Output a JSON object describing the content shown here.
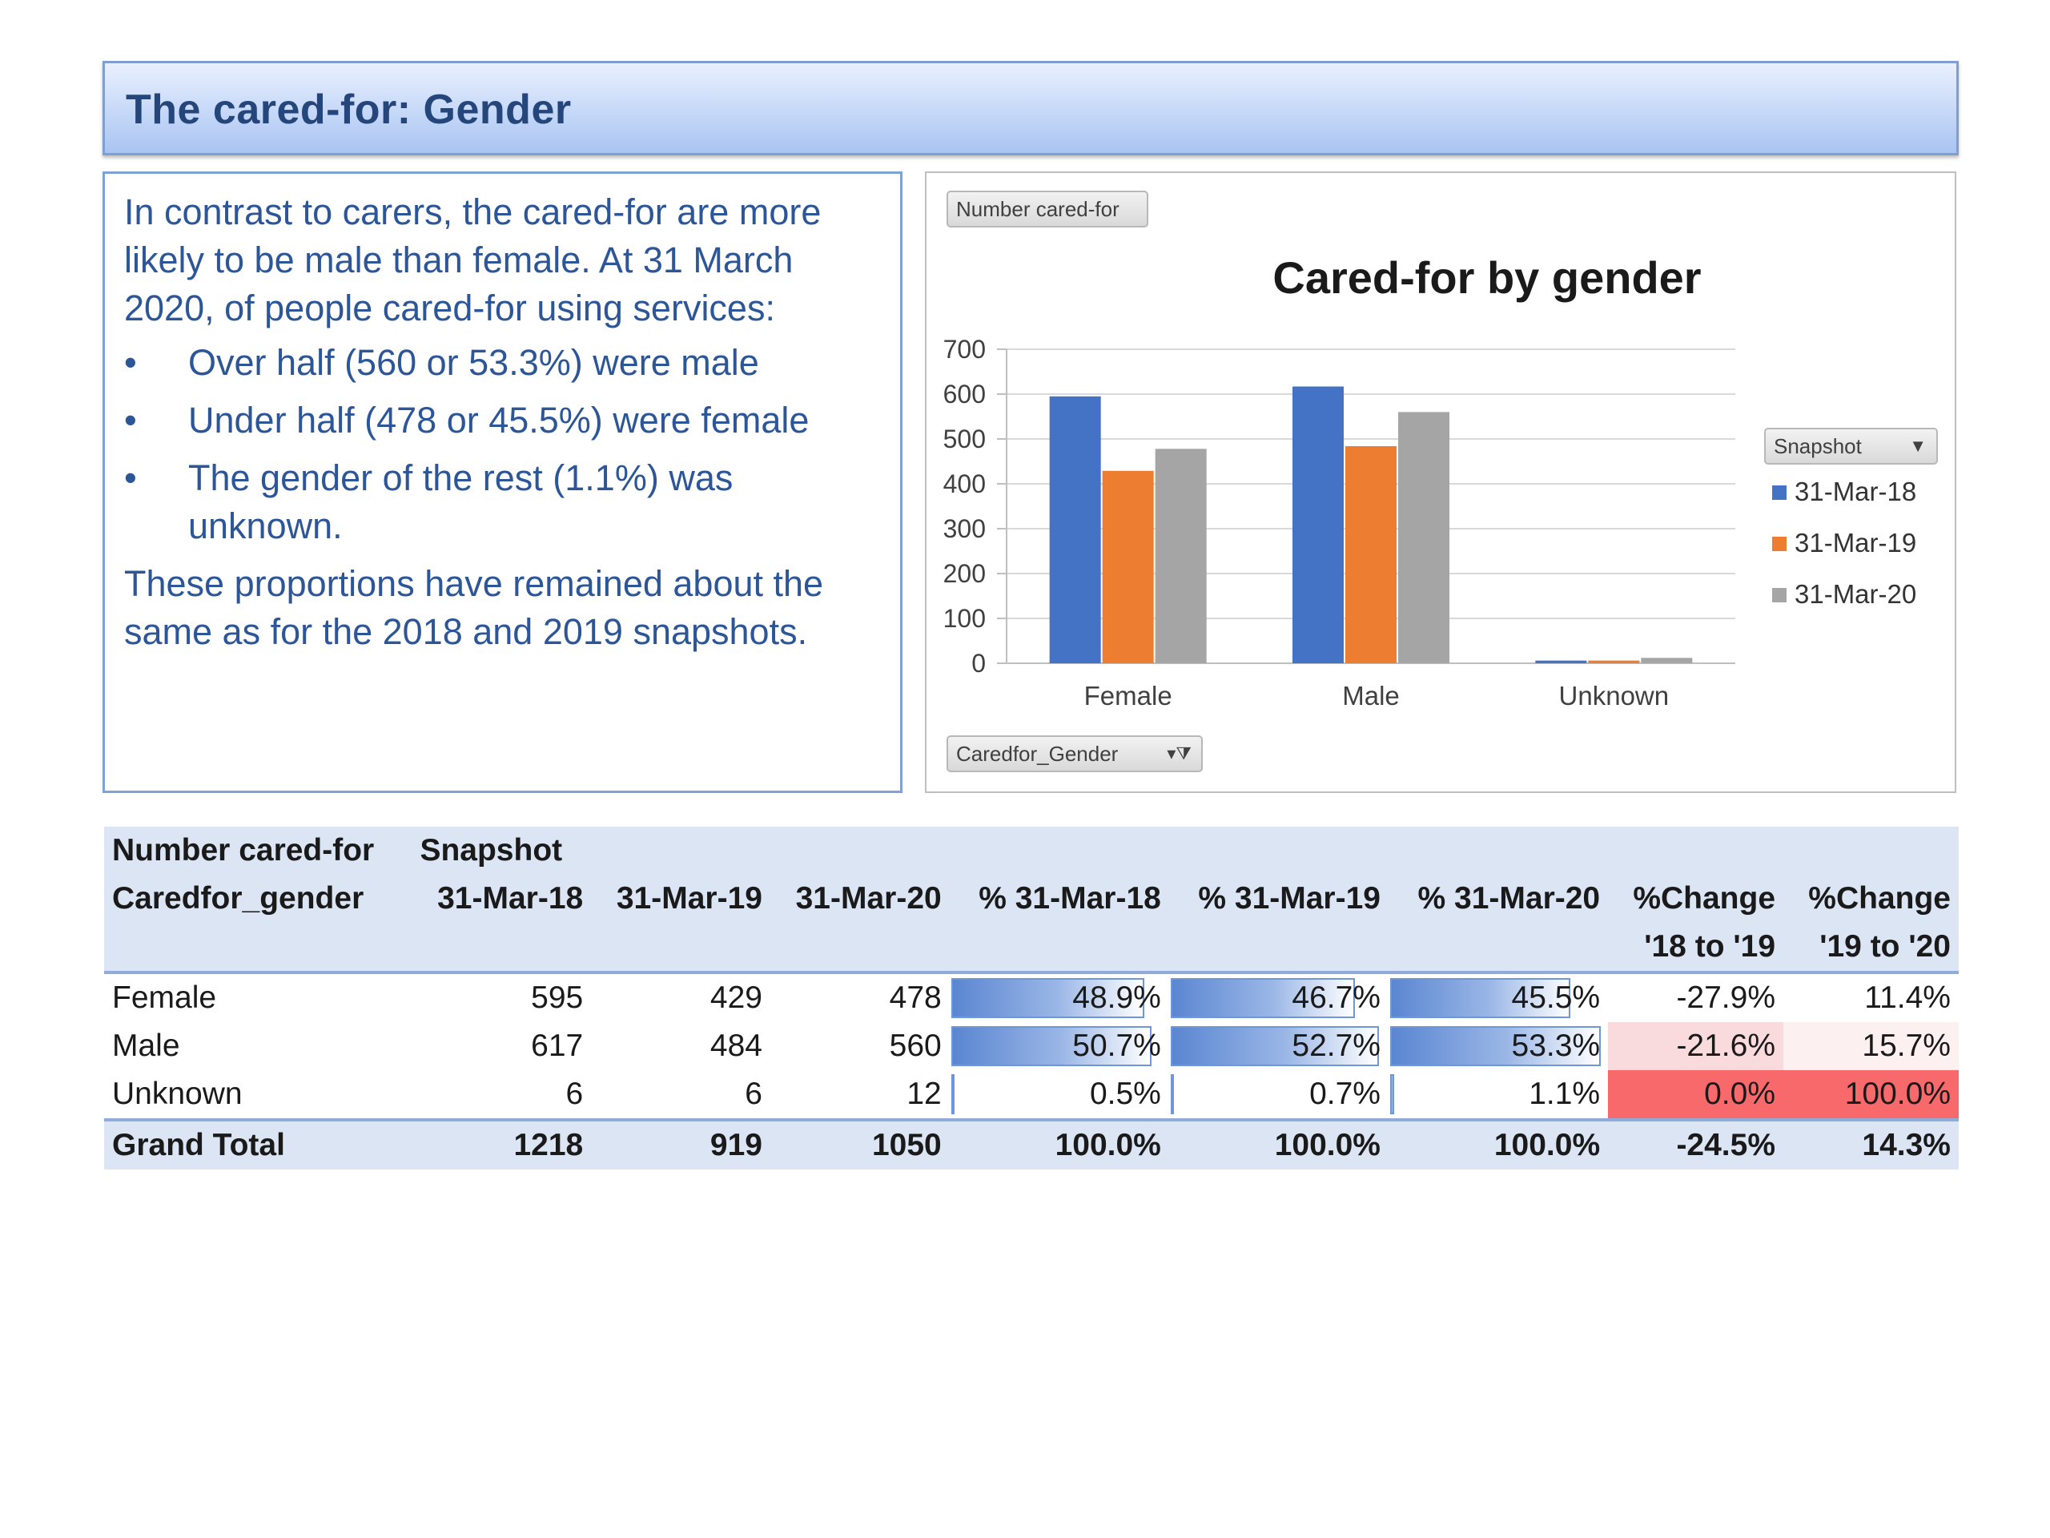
{
  "banner": {
    "title": "The cared-for: Gender"
  },
  "text": {
    "intro": "In contrast to carers, the cared-for are more likely to be male than female. At 31 March 2020, of people cared-for using services:",
    "bullet_symbol": "•",
    "bullets": [
      "Over half (560 or 53.3%) were male",
      "Under half (478 or 45.5%) were female",
      "The gender of the rest (1.1%) was unknown."
    ],
    "outro": "These proportions have remained about the same as for the 2018 and 2019 snapshots."
  },
  "chart_buttons": {
    "values_field": "Number cared-for",
    "axis_field": "Caredfor_Gender",
    "legend_field": "Snapshot"
  },
  "chart_data": {
    "type": "bar",
    "title": "Cared-for by gender",
    "categories": [
      "Female",
      "Male",
      "Unknown"
    ],
    "series": [
      {
        "name": "31-Mar-18",
        "values": [
          595,
          617,
          6
        ],
        "color": "#4472c4"
      },
      {
        "name": "31-Mar-19",
        "values": [
          429,
          484,
          6
        ],
        "color": "#ed7d31"
      },
      {
        "name": "31-Mar-20",
        "values": [
          478,
          560,
          12
        ],
        "color": "#a5a5a5"
      }
    ],
    "ylim": [
      0,
      700
    ],
    "yticks": [
      "0",
      "100",
      "200",
      "300",
      "400",
      "500",
      "600",
      "700"
    ],
    "grid": true,
    "legend_position": "right"
  },
  "table": {
    "header1": {
      "c0": "Number cared-for",
      "c1": "Snapshot"
    },
    "header2": [
      "Caredfor_gender",
      "31-Mar-18",
      "31-Mar-19",
      "31-Mar-20",
      "% 31-Mar-18",
      "% 31-Mar-19",
      "% 31-Mar-20",
      "%Change",
      "%Change"
    ],
    "header3": [
      "'18 to '19",
      "'19 to '20"
    ],
    "rows": [
      {
        "label": "Female",
        "v18": "595",
        "v19": "429",
        "v20": "478",
        "p18": "48.9%",
        "p19": "46.7%",
        "p20": "45.5%",
        "c1": "-27.9%",
        "c2": "11.4%"
      },
      {
        "label": "Male",
        "v18": "617",
        "v19": "484",
        "v20": "560",
        "p18": "50.7%",
        "p19": "52.7%",
        "p20": "53.3%",
        "c1": "-21.6%",
        "c2": "15.7%"
      },
      {
        "label": "Unknown",
        "v18": "6",
        "v19": "6",
        "v20": "12",
        "p18": "0.5%",
        "p19": "0.7%",
        "p20": "1.1%",
        "c1": "0.0%",
        "c2": "100.0%"
      }
    ],
    "total": {
      "label": "Grand Total",
      "v18": "1218",
      "v19": "919",
      "v20": "1050",
      "p18": "100.0%",
      "p19": "100.0%",
      "p20": "100.0%",
      "c1": "-24.5%",
      "c2": "14.3%"
    },
    "bar_fractions": [
      [
        0.489,
        0.467,
        0.455
      ],
      [
        0.507,
        0.527,
        0.533
      ],
      [
        0.005,
        0.007,
        0.011
      ]
    ],
    "change_colors": [
      [
        "#ffffff",
        "#ffffff"
      ],
      [
        "#fadbdd",
        "#fdf0f1"
      ],
      [
        "#f8696b",
        "#f8696b"
      ]
    ]
  }
}
